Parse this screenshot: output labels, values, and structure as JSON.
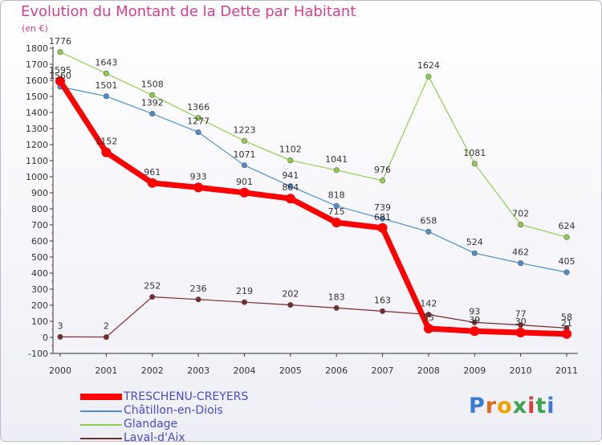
{
  "header": {
    "title": "Evolution du Montant de la Dette par Habitant",
    "unit": "(en €)"
  },
  "logo": {
    "letters": [
      "P",
      "r",
      "o",
      "x",
      "i",
      "t",
      "i"
    ]
  },
  "chart_data": {
    "type": "line",
    "title": "Evolution du Montant de la Dette par Habitant",
    "subtitle": "(en €)",
    "xlabel": "",
    "ylabel": "",
    "x": [
      "2000",
      "2001",
      "2002",
      "2003",
      "2004",
      "2005",
      "2006",
      "2007",
      "2008",
      "2009",
      "2010",
      "2011"
    ],
    "ylim": [
      -100,
      1800
    ],
    "yticks": [
      "-100",
      "0",
      "100",
      "200",
      "300",
      "400",
      "500",
      "600",
      "700",
      "800",
      "900",
      "1000",
      "1100",
      "1200",
      "1300",
      "1400",
      "1500",
      "1600",
      "1700",
      "1800"
    ],
    "grid": false,
    "legend_position": "bottom-left",
    "series": [
      {
        "name": "TRESCHENU-CREYERS",
        "color": "#ff0000",
        "values": [
          1595,
          1152,
          961,
          933,
          901,
          864,
          715,
          681,
          55,
          39,
          30,
          21
        ],
        "labels": [
          "1595",
          "1152",
          "961",
          "933",
          "901",
          "864",
          "715",
          "681",
          "55",
          "39",
          "30",
          "21"
        ]
      },
      {
        "name": "Châtillon-en-Diois",
        "color": "#4b8fd0",
        "values": [
          1560,
          1501,
          1392,
          1277,
          1071,
          941,
          818,
          739,
          658,
          524,
          462,
          405
        ],
        "labels": [
          "1560",
          "1501",
          "1392",
          "1277",
          "1071",
          "941",
          "818",
          "739",
          "658",
          "524",
          "462",
          "405"
        ]
      },
      {
        "name": "Glandage",
        "color": "#8fcf4b",
        "values": [
          1776,
          1643,
          1508,
          1366,
          1223,
          1102,
          1041,
          976,
          1624,
          1081,
          702,
          624
        ],
        "labels": [
          "1776",
          "1643",
          "1508",
          "1366",
          "1223",
          "1102",
          "1041",
          "976",
          "1624",
          "1081",
          "702",
          "624"
        ]
      },
      {
        "name": "Laval-d'Aix",
        "color": "#7a2a2a",
        "values": [
          3,
          2,
          252,
          236,
          219,
          202,
          183,
          163,
          142,
          93,
          77,
          58
        ],
        "labels": [
          "3",
          "2",
          "252",
          "236",
          "219",
          "202",
          "183",
          "163",
          "142",
          "93",
          "77",
          "58"
        ]
      }
    ]
  }
}
